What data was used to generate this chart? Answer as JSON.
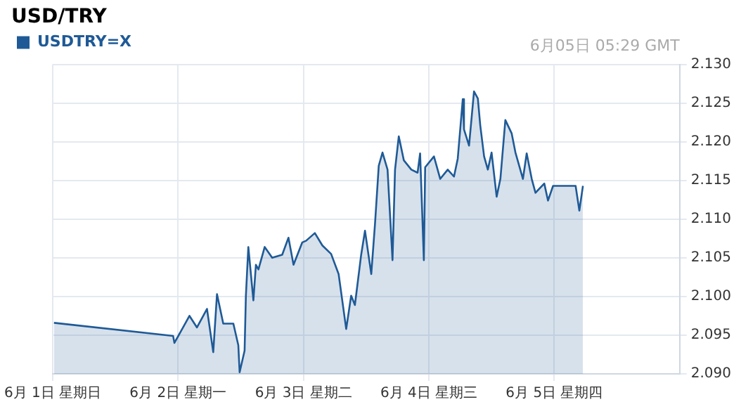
{
  "chart_data": {
    "type": "area",
    "title": "USD/TRY",
    "annotations": [
      "6月05日 05:29 GMT"
    ],
    "legend": "top left",
    "grid": true,
    "xlim": [
      "--06-01",
      "--06-06"
    ],
    "xticks": [
      {
        "value": "--06-01",
        "label": "6月 1日 星期日"
      },
      {
        "value": "--06-02",
        "label": "6月 2日 星期一"
      },
      {
        "value": "--06-03",
        "label": "6月 3日 星期二"
      },
      {
        "value": "--06-04",
        "label": "6月 4日 星期三"
      },
      {
        "value": "--06-05",
        "label": "6月 5日 星期四"
      }
    ],
    "ylim": [
      2.09,
      2.13
    ],
    "yticks": [
      {
        "value": 2.09,
        "label": "2.090"
      },
      {
        "value": 2.095,
        "label": "2.095"
      },
      {
        "value": 2.1,
        "label": "2.100"
      },
      {
        "value": 2.105,
        "label": "2.105"
      },
      {
        "value": 2.11,
        "label": "2.110"
      },
      {
        "value": 2.115,
        "label": "2.115"
      },
      {
        "value": 2.12,
        "label": "2.120"
      },
      {
        "value": 2.125,
        "label": "2.125"
      },
      {
        "value": 2.13,
        "label": "2.130"
      }
    ],
    "series": [
      {
        "name": "USDTRY=X",
        "color": "#1f5a96",
        "x": [
          "--06-01T00:14",
          "--06-01T23:02",
          "--06-01T23:17",
          "--06-02T02:10",
          "--06-02T03:36",
          "--06-02T05:31",
          "--06-02T06:43",
          "--06-02T07:26",
          "--06-02T08:38",
          "--06-02T10:34",
          "--06-02T11:31",
          "--06-02T11:46",
          "--06-02T12:43",
          "--06-02T12:58",
          "--06-02T13:26",
          "--06-02T14:24",
          "--06-02T14:53",
          "--06-02T15:22",
          "--06-02T16:34",
          "--06-02T18:00",
          "--06-02T19:55",
          "--06-02T21:07",
          "--06-02T22:05",
          "--06-02T23:46",
          "--06-03T00:29",
          "--06-03T02:10",
          "--06-03T03:36",
          "--06-03T05:17",
          "--06-03T06:43",
          "--06-03T08:10",
          "--06-03T09:07",
          "--06-03T09:50",
          "--06-03T11:02",
          "--06-03T11:46",
          "--06-03T12:58",
          "--06-03T13:41",
          "--06-03T14:24",
          "--06-03T15:07",
          "--06-03T16:05",
          "--06-03T17:02",
          "--06-03T17:31",
          "--06-03T18:14",
          "--06-03T19:12",
          "--06-03T20:38",
          "--06-03T21:50",
          "--06-03T22:19",
          "--06-03T23:02",
          "--06-03T23:17",
          "--06-04T00:58",
          "--06-04T02:10",
          "--06-04T03:36",
          "--06-04T04:48",
          "--06-04T05:31",
          "--06-04T06:29",
          "--06-04T06:43",
          "--06-04T07:41",
          "--06-04T08:38",
          "--06-04T09:22",
          "--06-04T09:50",
          "--06-04T10:34",
          "--06-04T11:17",
          "--06-04T12:00",
          "--06-04T12:58",
          "--06-04T13:41",
          "--06-04T14:38",
          "--06-04T15:50",
          "--06-04T16:34",
          "--06-04T18:00",
          "--06-04T18:43",
          "--06-04T19:41",
          "--06-04T20:24",
          "--06-04T22:05",
          "--06-04T22:48",
          "--06-04T23:46",
          "--06-05T02:10",
          "--06-05T04:05",
          "--06-05T04:48",
          "--06-05T05:29"
        ],
        "values": [
          2.0966,
          2.0949,
          2.094,
          2.0975,
          2.096,
          2.0984,
          2.0928,
          2.1003,
          2.0965,
          2.0965,
          2.0937,
          2.0902,
          2.093,
          2.1001,
          2.1064,
          2.0995,
          2.1041,
          2.1035,
          2.1064,
          2.105,
          2.1054,
          2.1076,
          2.1041,
          2.107,
          2.1072,
          2.1082,
          2.1066,
          2.1055,
          2.1029,
          2.0958,
          2.1001,
          2.0989,
          2.1054,
          2.1085,
          2.1029,
          2.1094,
          2.1169,
          2.1186,
          2.1164,
          2.1047,
          2.1164,
          2.1207,
          2.1176,
          2.1164,
          2.116,
          2.1185,
          2.1047,
          2.1167,
          2.1181,
          2.1152,
          2.1164,
          2.1155,
          2.1178,
          2.1255,
          2.1216,
          2.1195,
          2.1265,
          2.1256,
          2.1221,
          2.1181,
          2.1164,
          2.1186,
          2.1129,
          2.1152,
          2.1228,
          2.1211,
          2.1186,
          2.1152,
          2.1185,
          2.1152,
          2.1134,
          2.1146,
          2.1124,
          2.1143,
          2.1143,
          2.1143,
          2.1111,
          2.1143
        ]
      }
    ]
  }
}
